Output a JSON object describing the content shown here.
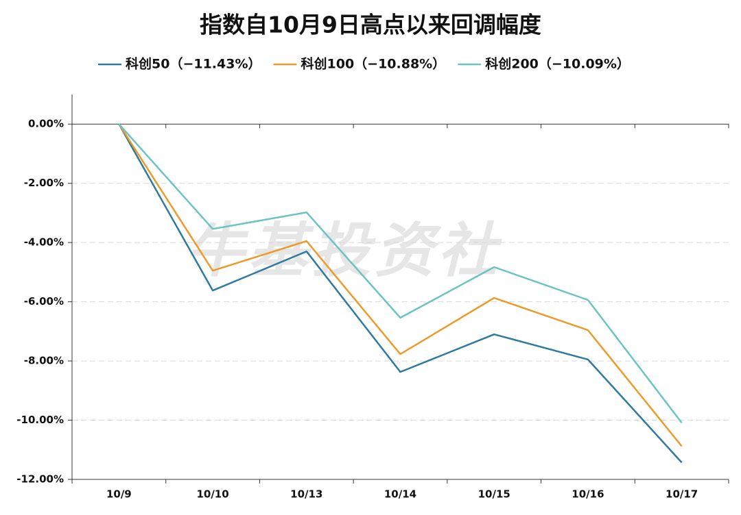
{
  "chart_data": {
    "type": "line",
    "title": "指数自10月9日高点以来回调幅度",
    "watermark": "牛基投资社",
    "categories": [
      "10/9",
      "10/10",
      "10/13",
      "10/14",
      "10/15",
      "10/16",
      "10/17"
    ],
    "series": [
      {
        "name": "科创50（−11.43%）",
        "color": "#2e7aa0",
        "values": [
          0,
          -5.62,
          -4.3,
          -8.37,
          -7.1,
          -7.95,
          -11.43
        ]
      },
      {
        "name": "科创100（−10.88%）",
        "color": "#ee9a2a",
        "values": [
          0,
          -4.95,
          -3.95,
          -7.77,
          -5.87,
          -6.96,
          -10.88
        ]
      },
      {
        "name": "科创200（−10.09%）",
        "color": "#6cc3c3",
        "values": [
          0,
          -3.54,
          -2.98,
          -6.54,
          -4.83,
          -5.94,
          -10.09
        ]
      }
    ],
    "ylim": [
      -12,
      1
    ],
    "yticks": [
      {
        "value": -12,
        "label": "-12.00%"
      },
      {
        "value": -10,
        "label": "-10.00%"
      },
      {
        "value": -8,
        "label": "-8.00%"
      },
      {
        "value": -6,
        "label": "-6.00%"
      },
      {
        "value": -4,
        "label": "-4.00%"
      },
      {
        "value": -2,
        "label": "-2.00%"
      },
      {
        "value": 0,
        "label": "0.00%"
      }
    ],
    "grid": true
  }
}
